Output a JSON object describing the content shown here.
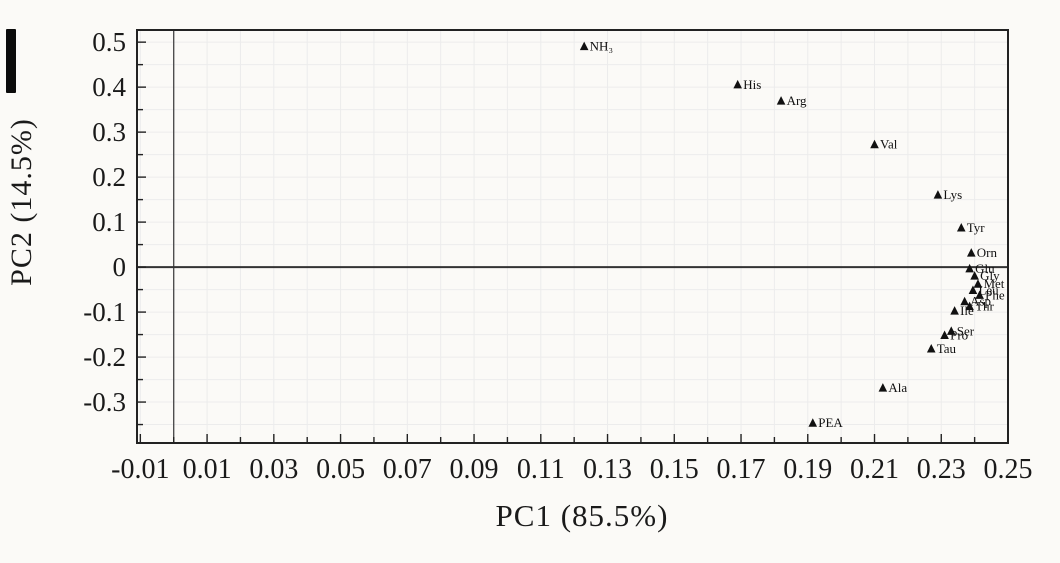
{
  "figure": {
    "kind": "PCA loadings scatter plot",
    "background": "#fbfaf7",
    "marker_color": "#111111",
    "grid_color": "#ececec",
    "axis_color": "#222222",
    "zero_line_color": "#444444"
  },
  "chart_data": {
    "type": "scatter",
    "title": "",
    "xlabel": "PC1 (85.5%)",
    "ylabel": "PC2 (14.5%)",
    "xlim": [
      -0.011,
      0.25
    ],
    "ylim": [
      -0.391,
      0.527
    ],
    "grid": "on",
    "legend": "none",
    "marker": "filled-black-triangle",
    "zero_reference_lines": true,
    "x_minor_step": 0.01,
    "y_minor_step": 0.05,
    "x_ticks": [
      {
        "v": -0.01,
        "t": "-0.01"
      },
      {
        "v": 0.01,
        "t": "0.01"
      },
      {
        "v": 0.03,
        "t": "0.03"
      },
      {
        "v": 0.05,
        "t": "0.05"
      },
      {
        "v": 0.07,
        "t": "0.07"
      },
      {
        "v": 0.09,
        "t": "0.09"
      },
      {
        "v": 0.11,
        "t": "0.11"
      },
      {
        "v": 0.13,
        "t": "0.13"
      },
      {
        "v": 0.15,
        "t": "0.15"
      },
      {
        "v": 0.17,
        "t": "0.17"
      },
      {
        "v": 0.19,
        "t": "0.19"
      },
      {
        "v": 0.21,
        "t": "0.21"
      },
      {
        "v": 0.23,
        "t": "0.23"
      },
      {
        "v": 0.25,
        "t": "0.25"
      }
    ],
    "y_ticks": [
      {
        "v": 0.5,
        "t": "0.5"
      },
      {
        "v": 0.4,
        "t": "0.4"
      },
      {
        "v": 0.3,
        "t": "0.3"
      },
      {
        "v": 0.2,
        "t": "0.2"
      },
      {
        "v": 0.1,
        "t": "0.1"
      },
      {
        "v": 0.0,
        "t": "0"
      },
      {
        "v": -0.1,
        "t": "-0.1"
      },
      {
        "v": -0.2,
        "t": "-0.2"
      },
      {
        "v": -0.3,
        "t": "-0.3"
      }
    ],
    "points": [
      {
        "label": "NH₃",
        "x": 0.123,
        "y": 0.49
      },
      {
        "label": "His",
        "x": 0.169,
        "y": 0.405
      },
      {
        "label": "Arg",
        "x": 0.182,
        "y": 0.369
      },
      {
        "label": "Val",
        "x": 0.21,
        "y": 0.272
      },
      {
        "label": "Lys",
        "x": 0.229,
        "y": 0.16
      },
      {
        "label": "Tyr",
        "x": 0.236,
        "y": 0.087
      },
      {
        "label": "Orn",
        "x": 0.239,
        "y": 0.031
      },
      {
        "label": "Glu",
        "x": 0.2385,
        "y": -0.004
      },
      {
        "label": "Gly",
        "x": 0.24,
        "y": -0.02
      },
      {
        "label": "Met",
        "x": 0.241,
        "y": -0.038
      },
      {
        "label": "Leu",
        "x": 0.2395,
        "y": -0.052
      },
      {
        "label": "Phe",
        "x": 0.2415,
        "y": -0.063
      },
      {
        "label": "Asp",
        "x": 0.237,
        "y": -0.077
      },
      {
        "label": "Thr",
        "x": 0.2385,
        "y": -0.088
      },
      {
        "label": "Ile",
        "x": 0.234,
        "y": -0.098
      },
      {
        "label": "Ser",
        "x": 0.233,
        "y": -0.143
      },
      {
        "label": "Pro",
        "x": 0.231,
        "y": -0.152
      },
      {
        "label": "Tau",
        "x": 0.227,
        "y": -0.182
      },
      {
        "label": "Ala",
        "x": 0.2125,
        "y": -0.269
      },
      {
        "label": "PEA",
        "x": 0.1915,
        "y": -0.347
      }
    ]
  }
}
